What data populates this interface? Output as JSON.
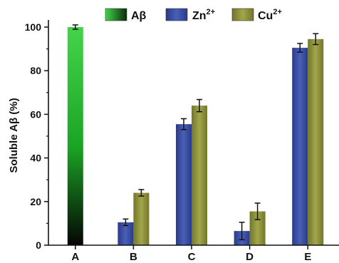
{
  "chart_data": {
    "type": "bar",
    "ylabel": "Soluble Aβ (%)",
    "xlabel": "",
    "ylim": [
      0,
      100
    ],
    "yticks": [
      "0",
      "20",
      "40",
      "60",
      "80",
      "100"
    ],
    "categories": [
      "A",
      "B",
      "C",
      "D",
      "E"
    ],
    "grid": false,
    "legend_position": "top",
    "series": [
      {
        "name": "Aβ",
        "color": "#22c02a",
        "gradient_to": "#050505",
        "values": [
          100,
          null,
          null,
          null,
          null
        ],
        "errors": [
          1,
          null,
          null,
          null,
          null
        ]
      },
      {
        "name": "Zn2+",
        "color": "#3a4da0",
        "values": [
          null,
          10.5,
          55.5,
          6.5,
          90.5
        ],
        "errors": [
          null,
          1.5,
          2.5,
          4,
          2
        ]
      },
      {
        "name": "Cu2+",
        "color": "#8c9038",
        "values": [
          null,
          24,
          64,
          15.5,
          94.5
        ],
        "errors": [
          null,
          1.5,
          2.8,
          3.8,
          2.5
        ]
      }
    ],
    "legend": [
      {
        "base": "Aβ",
        "sup": ""
      },
      {
        "base": "Zn",
        "sup": "2+"
      },
      {
        "base": "Cu",
        "sup": "2+"
      }
    ]
  }
}
